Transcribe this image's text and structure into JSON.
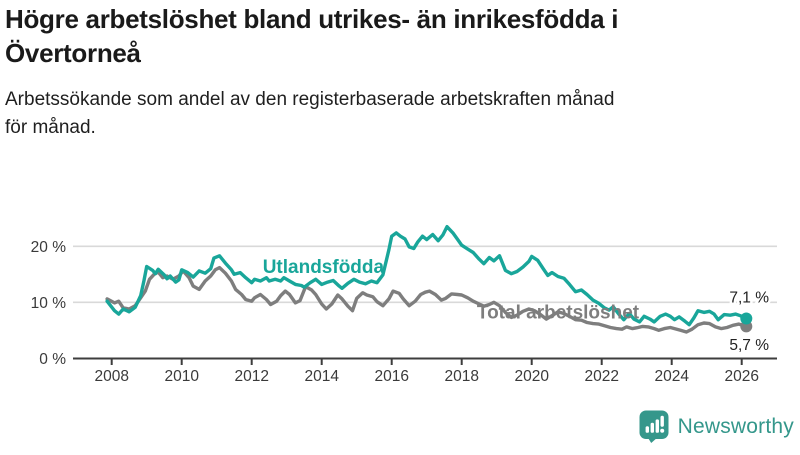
{
  "page": {
    "title_lines": [
      "Högre arbetslöshet bland utrikes- än inrikesfödda i",
      "Övertorneå"
    ],
    "subtitle_lines": [
      "Arbetssökande som andel av den registerbaserade arbetskraften månad",
      "för månad."
    ]
  },
  "branding": {
    "logo_text": "Newsworthy",
    "logo_icon": "speech-bubble-bar-chart-exclamation",
    "logo_color": "#35978b"
  },
  "colors": {
    "foreign_born_line": "#19a69a",
    "total_line": "#7e7e7e",
    "grid": "#d9d9d9",
    "axis": "#3d3d3d",
    "tick_text": "#3a3a3a",
    "end_label_text": "#222222",
    "background": "#ffffff"
  },
  "chart_data": {
    "type": "line",
    "title": "Högre arbetslöshet bland utrikes- än inrikesfödda i Övertorneå",
    "subtitle": "Arbetssökande som andel av den registerbaserade arbetskraften månad för månad.",
    "unit": "%",
    "grid": "horizontal",
    "legend": "inline-labels",
    "x_axis": {
      "ticks": [
        2008,
        2010,
        2012,
        2014,
        2016,
        2018,
        2020,
        2022,
        2024,
        2026
      ],
      "range": [
        2006.9,
        2027.0
      ]
    },
    "y_axis": {
      "ticks": [
        0,
        10,
        20
      ],
      "tick_labels": [
        "0 %",
        "10 %",
        "20 %"
      ],
      "range": [
        0,
        24.6
      ],
      "gridlines": [
        10,
        20
      ]
    },
    "series": [
      {
        "name": "Total arbetslöshet",
        "color": "#7e7e7e",
        "end_value": 5.7,
        "end_label": "5,7 %",
        "end_label_anchor": {
          "x": 2026.78,
          "y": 1.45
        },
        "label": {
          "x": 2020.75,
          "y": 8.3
        },
        "points": [
          [
            2007.87,
            10.6
          ],
          [
            2008.08,
            9.9
          ],
          [
            2008.2,
            10.2
          ],
          [
            2008.33,
            9.0
          ],
          [
            2008.5,
            8.8
          ],
          [
            2008.67,
            9.4
          ],
          [
            2008.83,
            10.8
          ],
          [
            2008.96,
            12.0
          ],
          [
            2009.08,
            14.1
          ],
          [
            2009.21,
            15.0
          ],
          [
            2009.33,
            15.4
          ],
          [
            2009.46,
            14.4
          ],
          [
            2009.58,
            14.7
          ],
          [
            2009.75,
            14.1
          ],
          [
            2009.92,
            14.7
          ],
          [
            2010.04,
            15.6
          ],
          [
            2010.21,
            14.4
          ],
          [
            2010.33,
            12.9
          ],
          [
            2010.5,
            12.3
          ],
          [
            2010.67,
            13.8
          ],
          [
            2010.83,
            14.7
          ],
          [
            2010.96,
            15.8
          ],
          [
            2011.08,
            16.2
          ],
          [
            2011.25,
            15.2
          ],
          [
            2011.42,
            13.8
          ],
          [
            2011.54,
            12.3
          ],
          [
            2011.71,
            11.4
          ],
          [
            2011.83,
            10.5
          ],
          [
            2012.0,
            10.2
          ],
          [
            2012.08,
            10.8
          ],
          [
            2012.25,
            11.4
          ],
          [
            2012.42,
            10.5
          ],
          [
            2012.54,
            9.6
          ],
          [
            2012.71,
            10.2
          ],
          [
            2012.83,
            11.2
          ],
          [
            2012.96,
            12.0
          ],
          [
            2013.08,
            11.4
          ],
          [
            2013.25,
            9.9
          ],
          [
            2013.38,
            10.3
          ],
          [
            2013.54,
            12.8
          ],
          [
            2013.71,
            12.2
          ],
          [
            2013.83,
            11.4
          ],
          [
            2014.0,
            9.7
          ],
          [
            2014.13,
            8.8
          ],
          [
            2014.29,
            9.7
          ],
          [
            2014.46,
            11.3
          ],
          [
            2014.58,
            10.6
          ],
          [
            2014.75,
            9.3
          ],
          [
            2014.88,
            8.5
          ],
          [
            2015.0,
            10.7
          ],
          [
            2015.17,
            11.7
          ],
          [
            2015.29,
            11.3
          ],
          [
            2015.46,
            11.0
          ],
          [
            2015.58,
            10.1
          ],
          [
            2015.75,
            9.4
          ],
          [
            2015.92,
            10.6
          ],
          [
            2016.04,
            12.0
          ],
          [
            2016.21,
            11.6
          ],
          [
            2016.33,
            10.6
          ],
          [
            2016.5,
            9.4
          ],
          [
            2016.67,
            10.2
          ],
          [
            2016.83,
            11.4
          ],
          [
            2016.96,
            11.8
          ],
          [
            2017.08,
            12.0
          ],
          [
            2017.25,
            11.4
          ],
          [
            2017.42,
            10.4
          ],
          [
            2017.54,
            10.7
          ],
          [
            2017.71,
            11.5
          ],
          [
            2017.88,
            11.4
          ],
          [
            2018.0,
            11.3
          ],
          [
            2018.17,
            10.8
          ],
          [
            2018.33,
            10.2
          ],
          [
            2018.5,
            9.7
          ],
          [
            2018.63,
            9.3
          ],
          [
            2018.79,
            9.6
          ],
          [
            2018.92,
            10.0
          ],
          [
            2019.08,
            9.4
          ],
          [
            2019.25,
            8.2
          ],
          [
            2019.42,
            7.3
          ],
          [
            2019.58,
            7.7
          ],
          [
            2019.75,
            8.4
          ],
          [
            2019.92,
            8.8
          ],
          [
            2020.08,
            8.5
          ],
          [
            2020.25,
            7.8
          ],
          [
            2020.42,
            7.0
          ],
          [
            2020.58,
            7.6
          ],
          [
            2020.75,
            8.3
          ],
          [
            2020.92,
            8.0
          ],
          [
            2021.08,
            7.5
          ],
          [
            2021.25,
            6.9
          ],
          [
            2021.42,
            6.8
          ],
          [
            2021.58,
            6.4
          ],
          [
            2021.75,
            6.2
          ],
          [
            2021.92,
            6.1
          ],
          [
            2022.08,
            5.8
          ],
          [
            2022.25,
            5.5
          ],
          [
            2022.42,
            5.3
          ],
          [
            2022.58,
            5.2
          ],
          [
            2022.71,
            5.6
          ],
          [
            2022.88,
            5.3
          ],
          [
            2023.04,
            5.5
          ],
          [
            2023.17,
            5.7
          ],
          [
            2023.33,
            5.6
          ],
          [
            2023.5,
            5.3
          ],
          [
            2023.63,
            5.0
          ],
          [
            2023.79,
            5.3
          ],
          [
            2023.96,
            5.5
          ],
          [
            2024.08,
            5.3
          ],
          [
            2024.25,
            5.0
          ],
          [
            2024.42,
            4.7
          ],
          [
            2024.58,
            5.2
          ],
          [
            2024.75,
            6.0
          ],
          [
            2024.92,
            6.3
          ],
          [
            2025.08,
            6.2
          ],
          [
            2025.25,
            5.6
          ],
          [
            2025.42,
            5.3
          ],
          [
            2025.58,
            5.5
          ],
          [
            2025.75,
            5.9
          ],
          [
            2025.92,
            6.1
          ],
          [
            2026.13,
            5.7
          ]
        ]
      },
      {
        "name": "Utlandsfödda",
        "color": "#19a69a",
        "end_value": 7.1,
        "end_label": "7,1 %",
        "end_label_anchor": {
          "x": 2026.78,
          "y": 9.95
        },
        "label": {
          "x": 2014.05,
          "y": 16.35
        },
        "points": [
          [
            2007.87,
            10.2
          ],
          [
            2008.08,
            8.5
          ],
          [
            2008.2,
            7.9
          ],
          [
            2008.33,
            8.8
          ],
          [
            2008.5,
            8.3
          ],
          [
            2008.67,
            9.1
          ],
          [
            2008.83,
            11.2
          ],
          [
            2008.92,
            13.8
          ],
          [
            2009.0,
            16.4
          ],
          [
            2009.17,
            15.7
          ],
          [
            2009.25,
            15.1
          ],
          [
            2009.33,
            15.9
          ],
          [
            2009.5,
            14.9
          ],
          [
            2009.58,
            14.2
          ],
          [
            2009.67,
            14.7
          ],
          [
            2009.83,
            13.6
          ],
          [
            2009.92,
            14.0
          ],
          [
            2010.0,
            15.8
          ],
          [
            2010.17,
            15.3
          ],
          [
            2010.33,
            14.5
          ],
          [
            2010.5,
            15.6
          ],
          [
            2010.67,
            15.2
          ],
          [
            2010.83,
            16.0
          ],
          [
            2010.92,
            17.9
          ],
          [
            2011.08,
            18.3
          ],
          [
            2011.25,
            17.0
          ],
          [
            2011.42,
            15.8
          ],
          [
            2011.5,
            15.0
          ],
          [
            2011.67,
            15.3
          ],
          [
            2011.83,
            14.4
          ],
          [
            2012.0,
            13.5
          ],
          [
            2012.08,
            14.1
          ],
          [
            2012.25,
            13.8
          ],
          [
            2012.42,
            14.4
          ],
          [
            2012.5,
            13.8
          ],
          [
            2012.67,
            14.1
          ],
          [
            2012.83,
            13.8
          ],
          [
            2012.92,
            14.4
          ],
          [
            2013.08,
            13.8
          ],
          [
            2013.25,
            13.2
          ],
          [
            2013.42,
            13.0
          ],
          [
            2013.5,
            12.7
          ],
          [
            2013.67,
            13.5
          ],
          [
            2013.83,
            14.1
          ],
          [
            2014.0,
            13.2
          ],
          [
            2014.17,
            13.6
          ],
          [
            2014.33,
            13.9
          ],
          [
            2014.5,
            12.9
          ],
          [
            2014.58,
            12.5
          ],
          [
            2014.75,
            13.4
          ],
          [
            2014.92,
            14.1
          ],
          [
            2015.08,
            13.6
          ],
          [
            2015.25,
            13.3
          ],
          [
            2015.42,
            13.8
          ],
          [
            2015.58,
            13.5
          ],
          [
            2015.75,
            14.9
          ],
          [
            2015.92,
            19.4
          ],
          [
            2016.0,
            21.8
          ],
          [
            2016.13,
            22.4
          ],
          [
            2016.25,
            21.8
          ],
          [
            2016.38,
            21.3
          ],
          [
            2016.5,
            19.9
          ],
          [
            2016.63,
            19.6
          ],
          [
            2016.75,
            20.8
          ],
          [
            2016.88,
            21.8
          ],
          [
            2017.0,
            21.2
          ],
          [
            2017.17,
            22.1
          ],
          [
            2017.33,
            21.0
          ],
          [
            2017.46,
            22.0
          ],
          [
            2017.58,
            23.5
          ],
          [
            2017.75,
            22.4
          ],
          [
            2017.92,
            20.9
          ],
          [
            2018.0,
            20.2
          ],
          [
            2018.17,
            19.5
          ],
          [
            2018.33,
            18.9
          ],
          [
            2018.5,
            17.7
          ],
          [
            2018.63,
            16.9
          ],
          [
            2018.79,
            18.0
          ],
          [
            2018.92,
            17.4
          ],
          [
            2019.08,
            18.3
          ],
          [
            2019.25,
            15.7
          ],
          [
            2019.42,
            15.1
          ],
          [
            2019.58,
            15.5
          ],
          [
            2019.75,
            16.3
          ],
          [
            2019.92,
            17.3
          ],
          [
            2020.0,
            18.2
          ],
          [
            2020.17,
            17.5
          ],
          [
            2020.33,
            16.0
          ],
          [
            2020.46,
            14.8
          ],
          [
            2020.58,
            15.3
          ],
          [
            2020.75,
            14.6
          ],
          [
            2020.92,
            14.3
          ],
          [
            2021.08,
            13.2
          ],
          [
            2021.25,
            11.9
          ],
          [
            2021.42,
            12.2
          ],
          [
            2021.58,
            11.4
          ],
          [
            2021.75,
            10.4
          ],
          [
            2021.92,
            9.8
          ],
          [
            2022.08,
            9.0
          ],
          [
            2022.21,
            8.6
          ],
          [
            2022.33,
            9.2
          ],
          [
            2022.5,
            7.8
          ],
          [
            2022.63,
            6.9
          ],
          [
            2022.79,
            8.0
          ],
          [
            2022.92,
            7.0
          ],
          [
            2023.08,
            6.5
          ],
          [
            2023.21,
            7.5
          ],
          [
            2023.38,
            7.0
          ],
          [
            2023.5,
            6.5
          ],
          [
            2023.67,
            7.5
          ],
          [
            2023.83,
            7.9
          ],
          [
            2023.96,
            7.5
          ],
          [
            2024.08,
            6.9
          ],
          [
            2024.21,
            7.4
          ],
          [
            2024.38,
            6.6
          ],
          [
            2024.5,
            6.0
          ],
          [
            2024.63,
            7.2
          ],
          [
            2024.75,
            8.5
          ],
          [
            2024.92,
            8.2
          ],
          [
            2025.08,
            8.4
          ],
          [
            2025.21,
            7.9
          ],
          [
            2025.33,
            6.9
          ],
          [
            2025.5,
            7.8
          ],
          [
            2025.67,
            7.7
          ],
          [
            2025.83,
            7.9
          ],
          [
            2025.96,
            7.6
          ],
          [
            2026.13,
            7.1
          ]
        ]
      }
    ]
  }
}
